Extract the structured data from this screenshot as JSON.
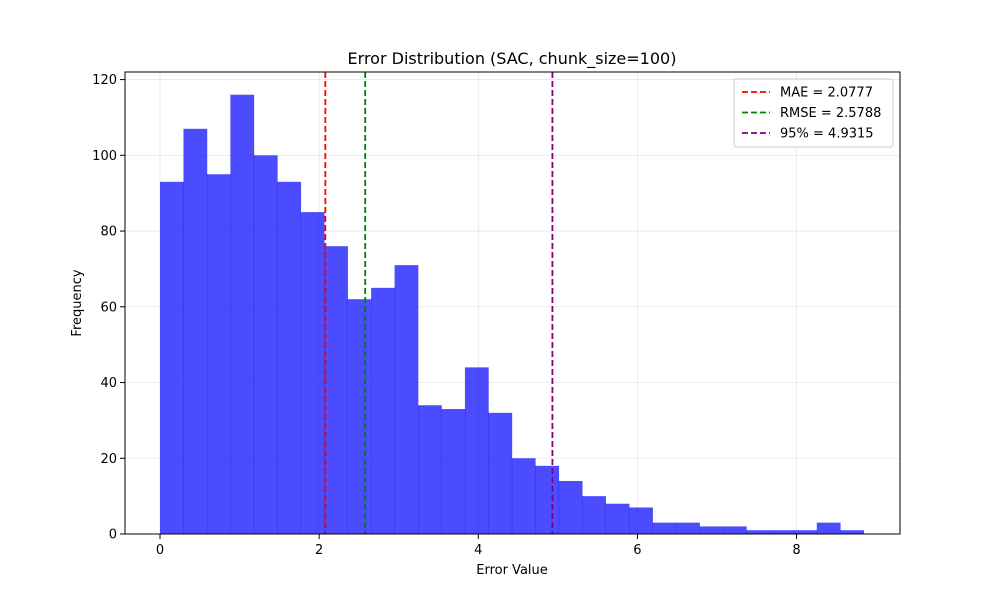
{
  "chart_data": {
    "type": "bar",
    "title": "Error Distribution (SAC, chunk_size=100)",
    "xlabel": "Error Value",
    "ylabel": "Frequency",
    "xlim": [
      -0.44,
      9.3
    ],
    "ylim": [
      0,
      122
    ],
    "xticks": [
      0,
      2,
      4,
      6,
      8
    ],
    "yticks": [
      0,
      20,
      40,
      60,
      80,
      100,
      120
    ],
    "grid": true,
    "bar_color": "#0000ff",
    "bar_alpha": 0.7,
    "bins": {
      "start": 0.0,
      "width": 0.2948,
      "counts": [
        93,
        107,
        95,
        116,
        100,
        93,
        85,
        76,
        62,
        65,
        71,
        34,
        33,
        44,
        32,
        20,
        18,
        14,
        10,
        8,
        7,
        3,
        3,
        2,
        2,
        1,
        1,
        1,
        3,
        1
      ]
    },
    "reference_lines": [
      {
        "label": "MAE = 2.0777",
        "x": 2.0777,
        "color": "#ff0000"
      },
      {
        "label": "RMSE = 2.5788",
        "x": 2.5788,
        "color": "#008000"
      },
      {
        "label": "95% = 4.9315",
        "x": 4.9315,
        "color": "#800080"
      }
    ],
    "legend_position": "top-right"
  }
}
